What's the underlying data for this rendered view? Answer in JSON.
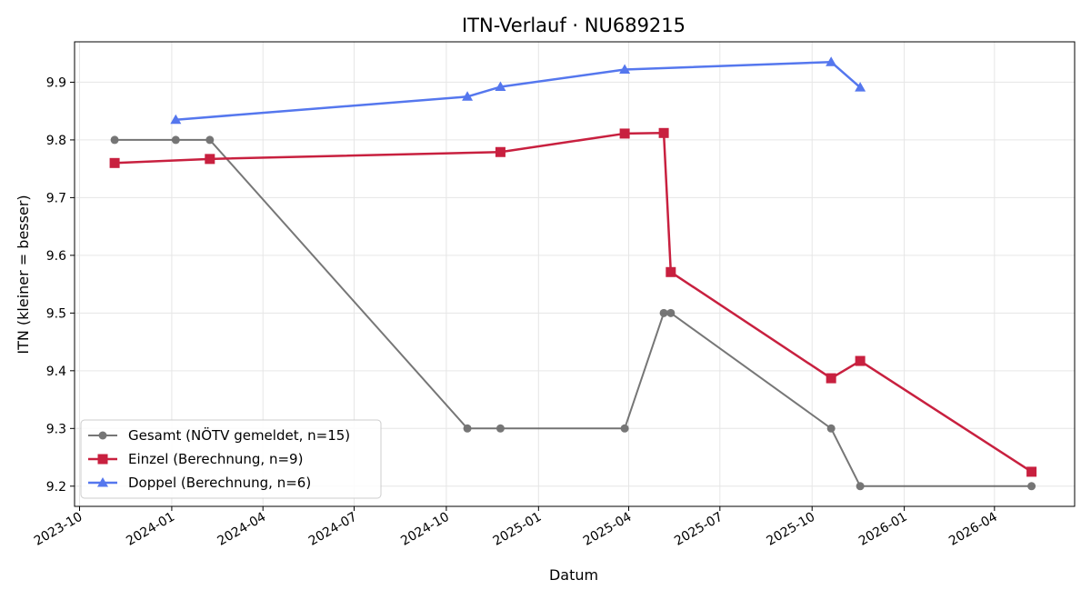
{
  "chart_data": {
    "type": "line",
    "title": "ITN-Verlauf · NU689215",
    "xlabel": "Datum",
    "ylabel": "ITN  (kleiner = besser)",
    "x_type": "date",
    "xlim": [
      "2023-09-26",
      "2026-06-20"
    ],
    "ylim": [
      9.165,
      9.97
    ],
    "x_ticks": [
      "2023-10-01",
      "2024-01-01",
      "2024-04-01",
      "2024-07-01",
      "2024-10-01",
      "2025-01-01",
      "2025-04-01",
      "2025-07-01",
      "2025-10-01",
      "2026-01-01",
      "2026-04-01"
    ],
    "x_tick_labels": [
      "2023-10",
      "2024-01",
      "2024-04",
      "2024-07",
      "2024-10",
      "2025-01",
      "2025-04",
      "2025-07",
      "2025-10",
      "2026-01",
      "2026-04"
    ],
    "y_ticks": [
      9.2,
      9.3,
      9.4,
      9.5,
      9.6,
      9.7,
      9.8,
      9.9
    ],
    "y_tick_labels": [
      "9.2",
      "9.3",
      "9.4",
      "9.5",
      "9.6",
      "9.7",
      "9.8",
      "9.9"
    ],
    "grid": true,
    "legend_position": "lower-left",
    "series": [
      {
        "name": "Gesamt (NÖTV gemeldet, n=15)",
        "color": "#555555",
        "marker": "circle",
        "points": [
          {
            "x": "2023-11-05",
            "y": 9.8
          },
          {
            "x": "2024-01-05",
            "y": 9.8
          },
          {
            "x": "2024-02-08",
            "y": 9.8
          },
          {
            "x": "2024-10-22",
            "y": 9.3
          },
          {
            "x": "2024-11-24",
            "y": 9.3
          },
          {
            "x": "2025-03-28",
            "y": 9.3
          },
          {
            "x": "2025-05-06",
            "y": 9.5
          },
          {
            "x": "2025-05-13",
            "y": 9.5
          },
          {
            "x": "2025-10-20",
            "y": 9.3
          },
          {
            "x": "2025-11-18",
            "y": 9.2
          },
          {
            "x": "2026-05-08",
            "y": 9.2
          }
        ]
      },
      {
        "name": "Einzel (Berechnung, n=9)",
        "color": "#c8203f",
        "marker": "square",
        "points": [
          {
            "x": "2023-11-05",
            "y": 9.76
          },
          {
            "x": "2024-02-08",
            "y": 9.767
          },
          {
            "x": "2024-11-24",
            "y": 9.779
          },
          {
            "x": "2025-03-28",
            "y": 9.811
          },
          {
            "x": "2025-05-06",
            "y": 9.812
          },
          {
            "x": "2025-05-13",
            "y": 9.571
          },
          {
            "x": "2025-10-20",
            "y": 9.387
          },
          {
            "x": "2025-11-18",
            "y": 9.417
          },
          {
            "x": "2026-05-08",
            "y": 9.225
          }
        ]
      },
      {
        "name": "Doppel (Berechnung, n=6)",
        "color": "#5577ee",
        "marker": "triangle",
        "points": [
          {
            "x": "2024-01-05",
            "y": 9.835
          },
          {
            "x": "2024-10-22",
            "y": 9.875
          },
          {
            "x": "2024-11-24",
            "y": 9.892
          },
          {
            "x": "2025-03-28",
            "y": 9.922
          },
          {
            "x": "2025-10-20",
            "y": 9.935
          },
          {
            "x": "2025-11-18",
            "y": 9.891
          }
        ]
      }
    ]
  }
}
